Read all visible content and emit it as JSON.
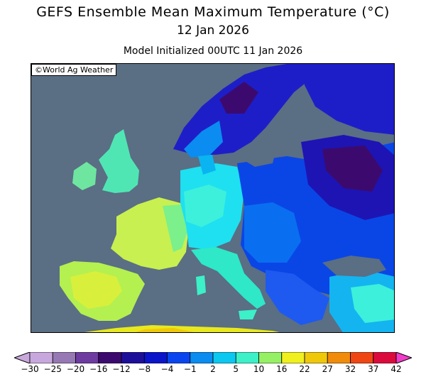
{
  "header": {
    "title": "GEFS Ensemble Mean Maximum Temperature (°C)",
    "date": "12 Jan 2026",
    "init": "Model Initialized 00UTC 11 Jan 2026"
  },
  "map": {
    "credit": "©World Ag Weather",
    "ocean_color": "#5a6e84"
  },
  "colorbar": {
    "ticks": [
      "−30",
      "−25",
      "−20",
      "−16",
      "−12",
      "−8",
      "−4",
      "−1",
      "2",
      "5",
      "10",
      "16",
      "22",
      "27",
      "32",
      "37",
      "42"
    ],
    "colors": [
      "#c8a8dc",
      "#9678b4",
      "#6e3ca0",
      "#3c0a6e",
      "#1e0f9b",
      "#0a14c8",
      "#0a46f0",
      "#0a8cf0",
      "#0ac8f0",
      "#3cf0c8",
      "#96f064",
      "#f0f01e",
      "#f0c80a",
      "#f08c0a",
      "#f04614",
      "#dc0a3c",
      "#f03cc8"
    ]
  }
}
